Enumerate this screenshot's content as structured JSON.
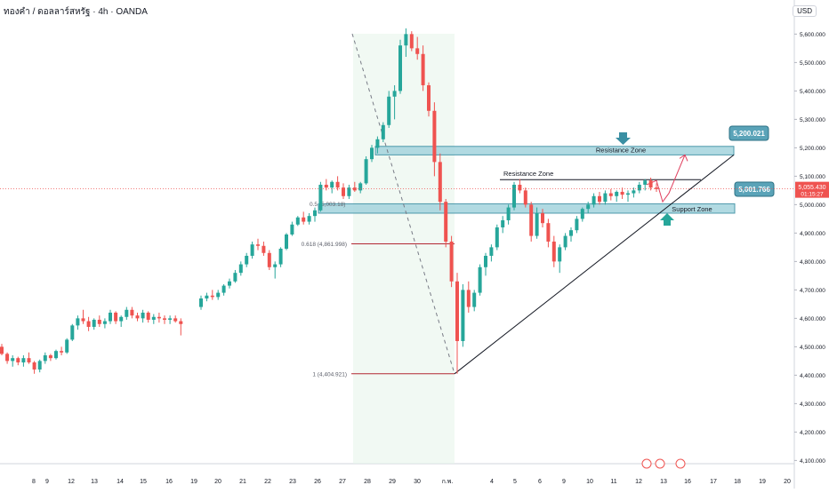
{
  "header": {
    "symbol_title": "ทองคำ / ดอลลาร์สหรัฐ · 4h · OANDA",
    "currency": "USD"
  },
  "colors": {
    "up": "#26a69a",
    "down": "#ef5350",
    "zone_fill": "#a9d6df",
    "zone_stroke": "#3a8fa3",
    "label_bg": "#5aa3b8",
    "price_label_bg": "#ef5350",
    "trend_line": "#131722",
    "fib_line": "#b22833",
    "projection": "#e0405f"
  },
  "chart_data": {
    "type": "candlestick",
    "title": "ทองคำ / ดอลลาร์สหรัฐ · 4h · OANDA",
    "ylabel": "USD",
    "ylim": [
      4075,
      5650
    ],
    "y_ticks": [
      "5,600.000",
      "5,500.000",
      "5,400.000",
      "5,300.000",
      "5,200.000",
      "5,100.000",
      "5,000.000",
      "4,900.000",
      "4,800.000",
      "4,700.000",
      "4,600.000",
      "4,500.000",
      "4,400.000",
      "4,300.000",
      "4,200.000",
      "4,100.000"
    ],
    "x_ticks": [
      "8",
      "9",
      "12",
      "13",
      "14",
      "15",
      "16",
      "19",
      "20",
      "21",
      "22",
      "23",
      "26",
      "27",
      "28",
      "29",
      "30",
      "ก.พ.",
      "4",
      "5",
      "6",
      "9",
      "10",
      "11",
      "12",
      "13",
      "16",
      "17",
      "18",
      "19",
      "20"
    ],
    "current_price": "5,055.430",
    "countdown": "01:15:27",
    "annotations": {
      "resistance_zone_upper": "Resistance Zone",
      "resistance_zone_lower": "Resistance Zone",
      "support_zone": "Support Zone",
      "price_5200": "5,200.021",
      "price_5001": "5,001.766",
      "fib_050": "0.5 (5,003.18)",
      "fib_0618": "0.618 (4,861.998)",
      "fib_1": "1 (4,404.921)"
    },
    "candles": [
      [
        4500,
        4510,
        4470,
        4475
      ],
      [
        4475,
        4480,
        4440,
        4450
      ],
      [
        4450,
        4470,
        4430,
        4460
      ],
      [
        4460,
        4465,
        4435,
        4445
      ],
      [
        4445,
        4470,
        4430,
        4460
      ],
      [
        4460,
        4480,
        4440,
        4445
      ],
      [
        4445,
        4450,
        4405,
        4420
      ],
      [
        4420,
        4455,
        4410,
        4450
      ],
      [
        4450,
        4480,
        4440,
        4470
      ],
      [
        4470,
        4475,
        4450,
        4460
      ],
      [
        4460,
        4490,
        4455,
        4485
      ],
      [
        4485,
        4500,
        4470,
        4480
      ],
      [
        4480,
        4530,
        4475,
        4525
      ],
      [
        4525,
        4580,
        4520,
        4575
      ],
      [
        4575,
        4610,
        4560,
        4600
      ],
      [
        4600,
        4630,
        4580,
        4590
      ],
      [
        4590,
        4605,
        4555,
        4570
      ],
      [
        4570,
        4600,
        4560,
        4595
      ],
      [
        4595,
        4610,
        4570,
        4580
      ],
      [
        4580,
        4600,
        4565,
        4590
      ],
      [
        4590,
        4630,
        4580,
        4620
      ],
      [
        4620,
        4625,
        4580,
        4590
      ],
      [
        4590,
        4610,
        4570,
        4605
      ],
      [
        4605,
        4640,
        4595,
        4630
      ],
      [
        4630,
        4640,
        4600,
        4610
      ],
      [
        4610,
        4620,
        4590,
        4600
      ],
      [
        4600,
        4630,
        4585,
        4620
      ],
      [
        4620,
        4625,
        4585,
        4595
      ],
      [
        4595,
        4615,
        4580,
        4605
      ],
      [
        4605,
        4620,
        4585,
        4600
      ],
      [
        4600,
        4610,
        4580,
        4595
      ],
      [
        4595,
        4610,
        4580,
        4600
      ],
      [
        4600,
        4610,
        4585,
        4590
      ],
      [
        4590,
        4600,
        4540,
        4580
      ],
      [
        4640,
        4680,
        4630,
        4670
      ],
      [
        4670,
        4690,
        4660,
        4680
      ],
      [
        4680,
        4700,
        4665,
        4675
      ],
      [
        4675,
        4700,
        4665,
        4690
      ],
      [
        4690,
        4720,
        4680,
        4715
      ],
      [
        4715,
        4740,
        4705,
        4730
      ],
      [
        4730,
        4770,
        4725,
        4760
      ],
      [
        4760,
        4800,
        4750,
        4790
      ],
      [
        4790,
        4830,
        4780,
        4820
      ],
      [
        4820,
        4870,
        4810,
        4860
      ],
      [
        4860,
        4880,
        4840,
        4855
      ],
      [
        4855,
        4870,
        4820,
        4830
      ],
      [
        4830,
        4840,
        4770,
        4780
      ],
      [
        4780,
        4800,
        4740,
        4790
      ],
      [
        4790,
        4850,
        4780,
        4845
      ],
      [
        4845,
        4900,
        4840,
        4895
      ],
      [
        4895,
        4940,
        4890,
        4930
      ],
      [
        4930,
        4960,
        4925,
        4955
      ],
      [
        4955,
        4975,
        4930,
        4940
      ],
      [
        4940,
        4970,
        4930,
        4960
      ],
      [
        4960,
        4990,
        4940,
        4980
      ],
      [
        4980,
        5080,
        4975,
        5070
      ],
      [
        5070,
        5090,
        5050,
        5060
      ],
      [
        5060,
        5085,
        5040,
        5080
      ],
      [
        5080,
        5100,
        5050,
        5060
      ],
      [
        5060,
        5075,
        5020,
        5030
      ],
      [
        5030,
        5070,
        5020,
        5060
      ],
      [
        5060,
        5080,
        5045,
        5050
      ],
      [
        5050,
        5080,
        5040,
        5075
      ],
      [
        5075,
        5170,
        5070,
        5160
      ],
      [
        5160,
        5210,
        5150,
        5200
      ],
      [
        5200,
        5240,
        5180,
        5230
      ],
      [
        5230,
        5290,
        5220,
        5280
      ],
      [
        5280,
        5400,
        5270,
        5380
      ],
      [
        5380,
        5420,
        5300,
        5400
      ],
      [
        5400,
        5580,
        5390,
        5560
      ],
      [
        5560,
        5620,
        5520,
        5600
      ],
      [
        5600,
        5610,
        5540,
        5550
      ],
      [
        5550,
        5590,
        5510,
        5530
      ],
      [
        5530,
        5560,
        5400,
        5420
      ],
      [
        5420,
        5430,
        5310,
        5330
      ],
      [
        5330,
        5360,
        5100,
        5150
      ],
      [
        5150,
        5180,
        4980,
        5010
      ],
      [
        5010,
        5020,
        4850,
        4870
      ],
      [
        4870,
        4890,
        4710,
        4730
      ],
      [
        4730,
        4760,
        4404.92,
        4520
      ],
      [
        4520,
        4720,
        4500,
        4700
      ],
      [
        4700,
        4730,
        4620,
        4640
      ],
      [
        4640,
        4700,
        4625,
        4690
      ],
      [
        4690,
        4790,
        4680,
        4780
      ],
      [
        4780,
        4830,
        4750,
        4820
      ],
      [
        4820,
        4860,
        4800,
        4850
      ],
      [
        4850,
        4930,
        4840,
        4920
      ],
      [
        4920,
        4960,
        4900,
        4945
      ],
      [
        4945,
        5000,
        4930,
        4990
      ],
      [
        4990,
        5080,
        4980,
        5070
      ],
      [
        5070,
        5090,
        5040,
        5050
      ],
      [
        5050,
        5060,
        4990,
        5000
      ],
      [
        5000,
        5010,
        4870,
        4890
      ],
      [
        4890,
        4990,
        4880,
        4970
      ],
      [
        4970,
        4985,
        4920,
        4935
      ],
      [
        4935,
        4950,
        4850,
        4870
      ],
      [
        4870,
        4890,
        4780,
        4800
      ],
      [
        4800,
        4860,
        4760,
        4850
      ],
      [
        4850,
        4900,
        4840,
        4890
      ],
      [
        4890,
        4920,
        4870,
        4910
      ],
      [
        4910,
        4960,
        4900,
        4950
      ],
      [
        4950,
        4990,
        4940,
        4985
      ],
      [
        4985,
        5010,
        4970,
        5000
      ],
      [
        5000,
        5040,
        4990,
        5030
      ],
      [
        5030,
        5045,
        5000,
        5010
      ],
      [
        5010,
        5050,
        5000,
        5040
      ],
      [
        5040,
        5055,
        5015,
        5030
      ],
      [
        5030,
        5050,
        5010,
        5045
      ],
      [
        5045,
        5060,
        5020,
        5035
      ],
      [
        5035,
        5050,
        5010,
        5040
      ],
      [
        5040,
        5060,
        5025,
        5050
      ],
      [
        5050,
        5080,
        5040,
        5070
      ],
      [
        5070,
        5090,
        5050,
        5085
      ],
      [
        5085,
        5095,
        5050,
        5060
      ],
      [
        5060,
        5075,
        5045,
        5055
      ]
    ]
  }
}
